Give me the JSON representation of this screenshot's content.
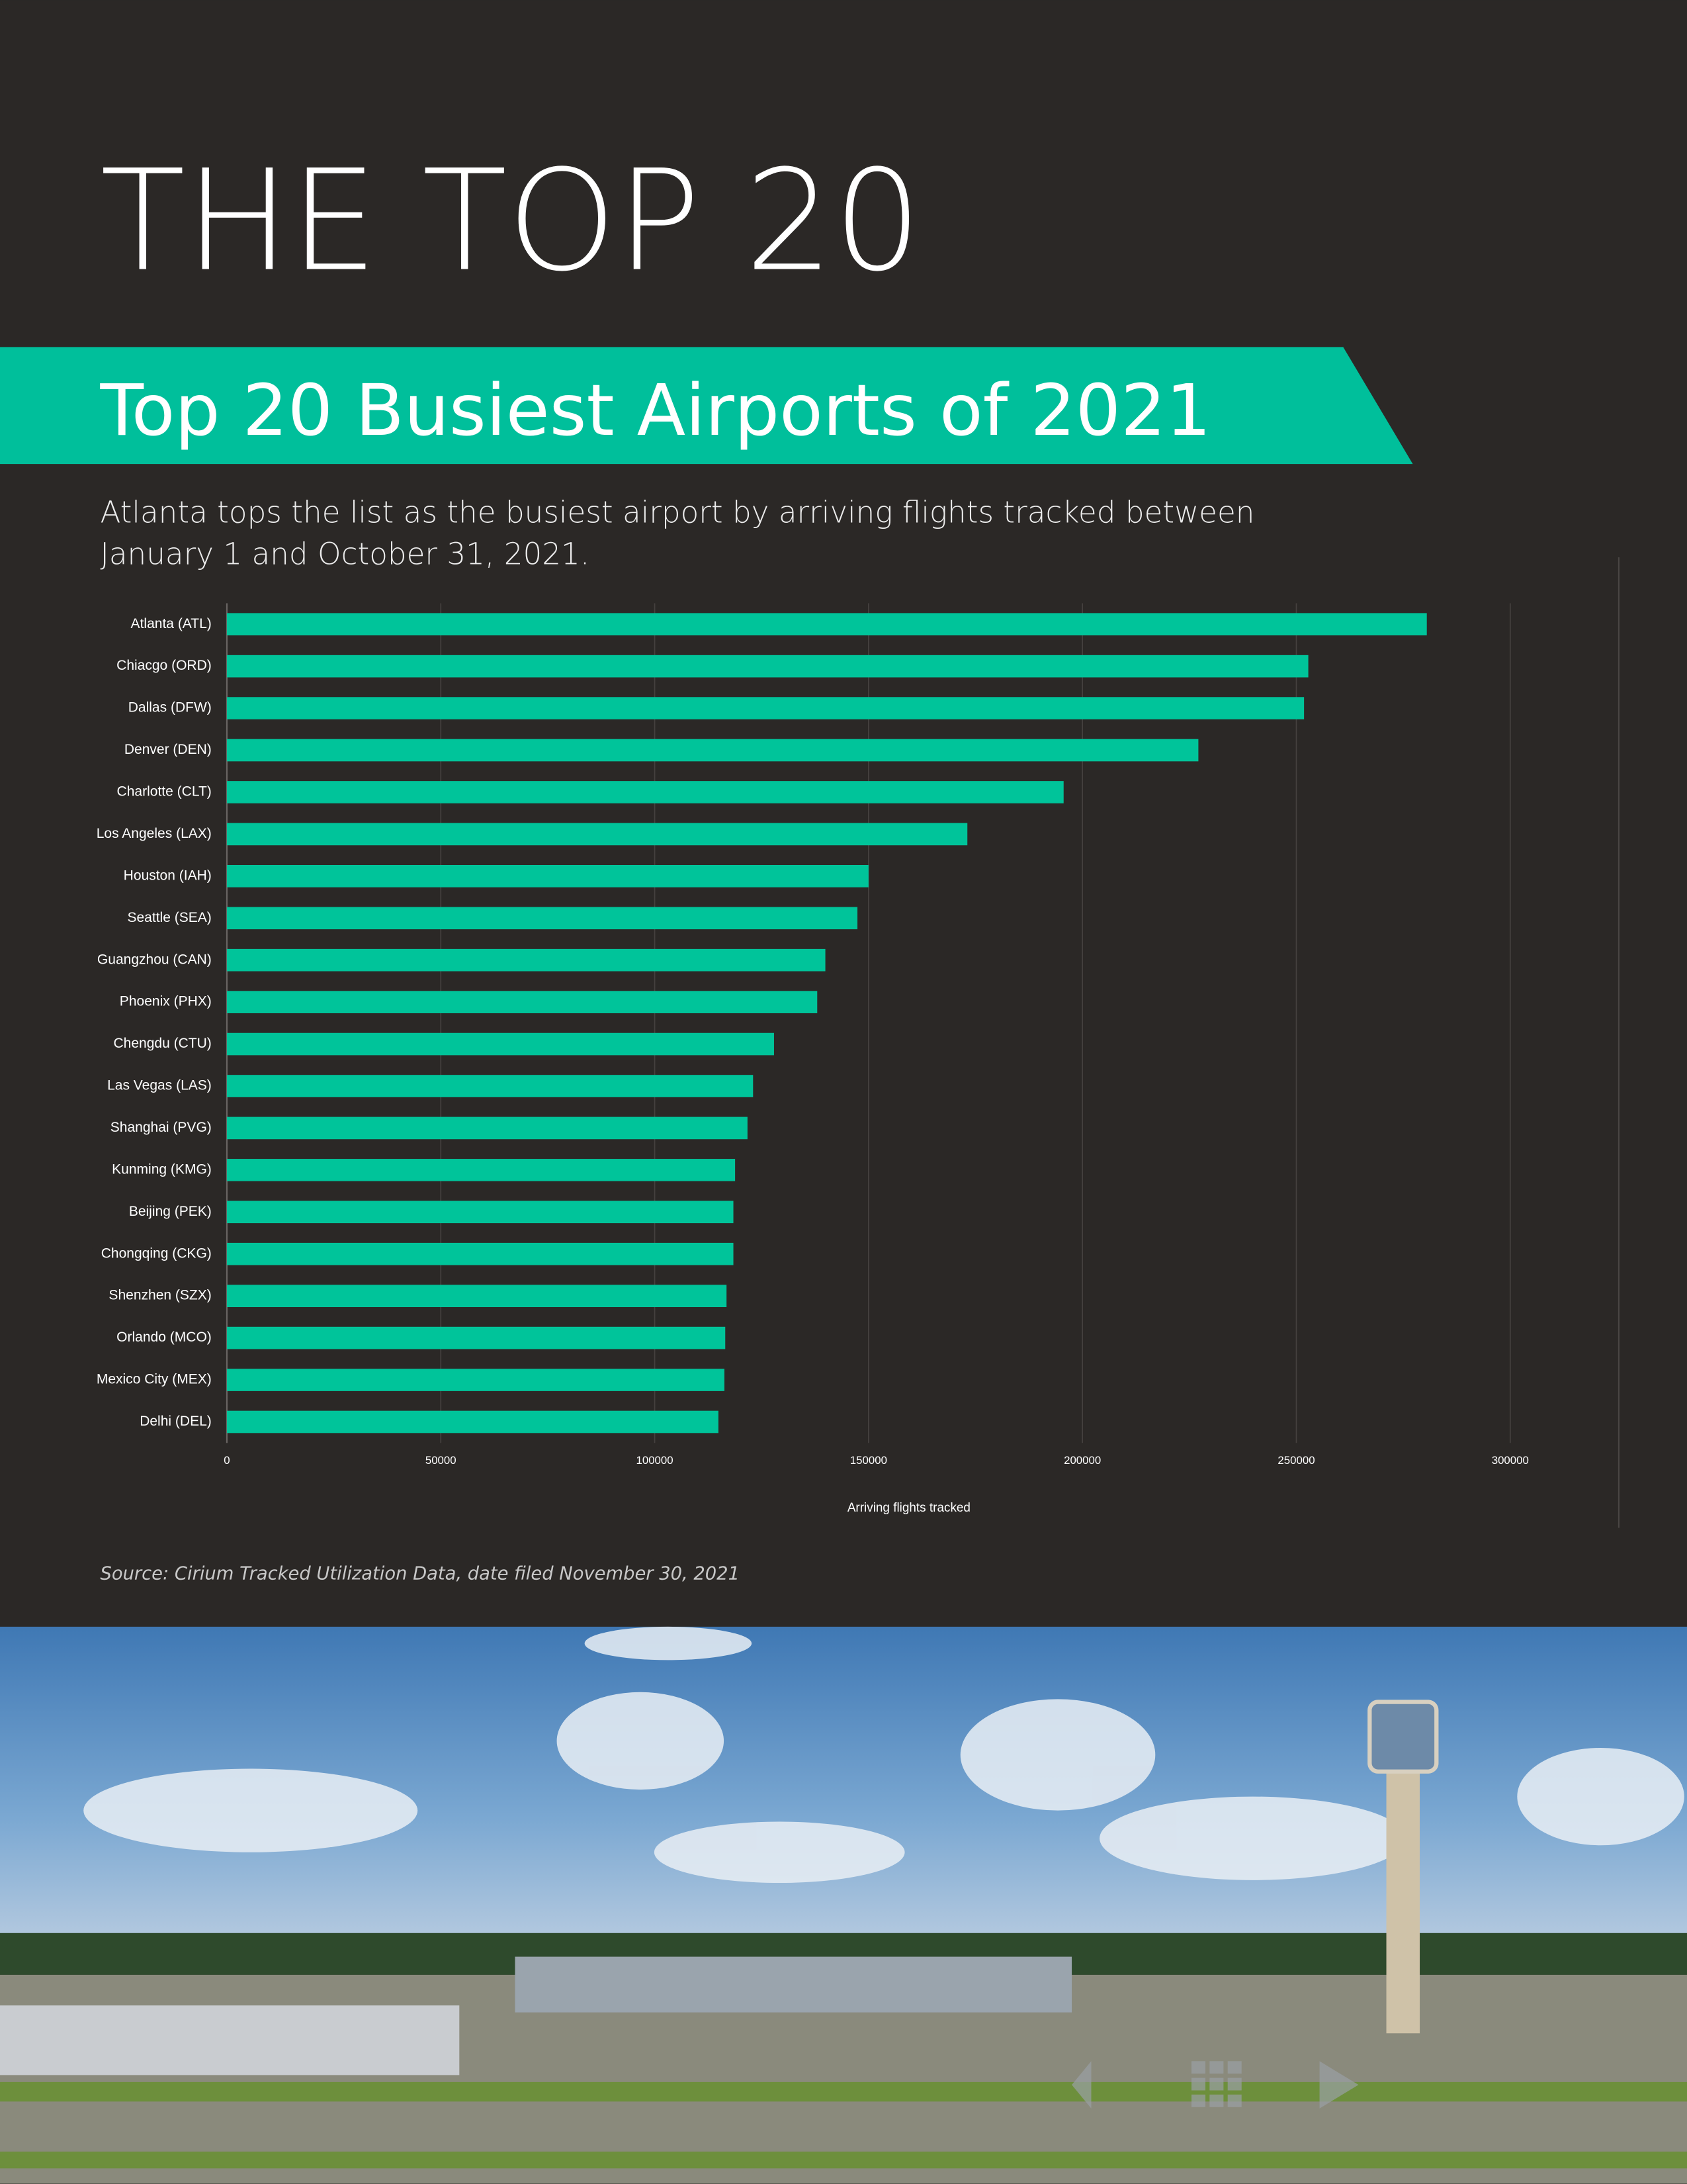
{
  "header": {
    "title": "THE TOP 20"
  },
  "chart_data": {
    "type": "bar",
    "orientation": "horizontal",
    "title": "Top 20 Busiest Airports of 2021",
    "subtitle": "Atlanta tops the list as the busiest airport by arriving flights tracked between January 1 and October 31, 2021.",
    "x_label": "Arriving flights tracked",
    "source": "Source: Cirium Tracked Utilization Data, date filed November 30, 2021",
    "categories": [
      "Atlanta (ATL)",
      "Chiacgo (ORD)",
      "Dallas (DFW)",
      "Denver (DEN)",
      "Charlotte (CLT)",
      "Los Angeles (LAX)",
      "Houston (IAH)",
      "Seattle (SEA)",
      "Guangzhou (CAN)",
      "Phoenix (PHX)",
      "Chengdu (CTU)",
      "Las Vegas (LAS)",
      "Shanghai (PVG)",
      "Kunming (KMG)",
      "Beijing (PEK)",
      "Chongqing (CKG)",
      "Shenzhen (SZX)",
      "Orlando (MCO)",
      "Mexico City (MEX)",
      "Delhi (DEL)"
    ],
    "values": [
      280500,
      252800,
      251800,
      227100,
      195600,
      173100,
      150000,
      147400,
      139900,
      138000,
      127900,
      123000,
      121700,
      118800,
      118400,
      118400,
      116800,
      116500,
      116300,
      114900
    ],
    "color": "#00c49a",
    "xlim": [
      0,
      300000
    ],
    "xticks": [
      0,
      50000,
      100000,
      150000,
      200000,
      250000,
      300000
    ],
    "grid": true
  }
}
